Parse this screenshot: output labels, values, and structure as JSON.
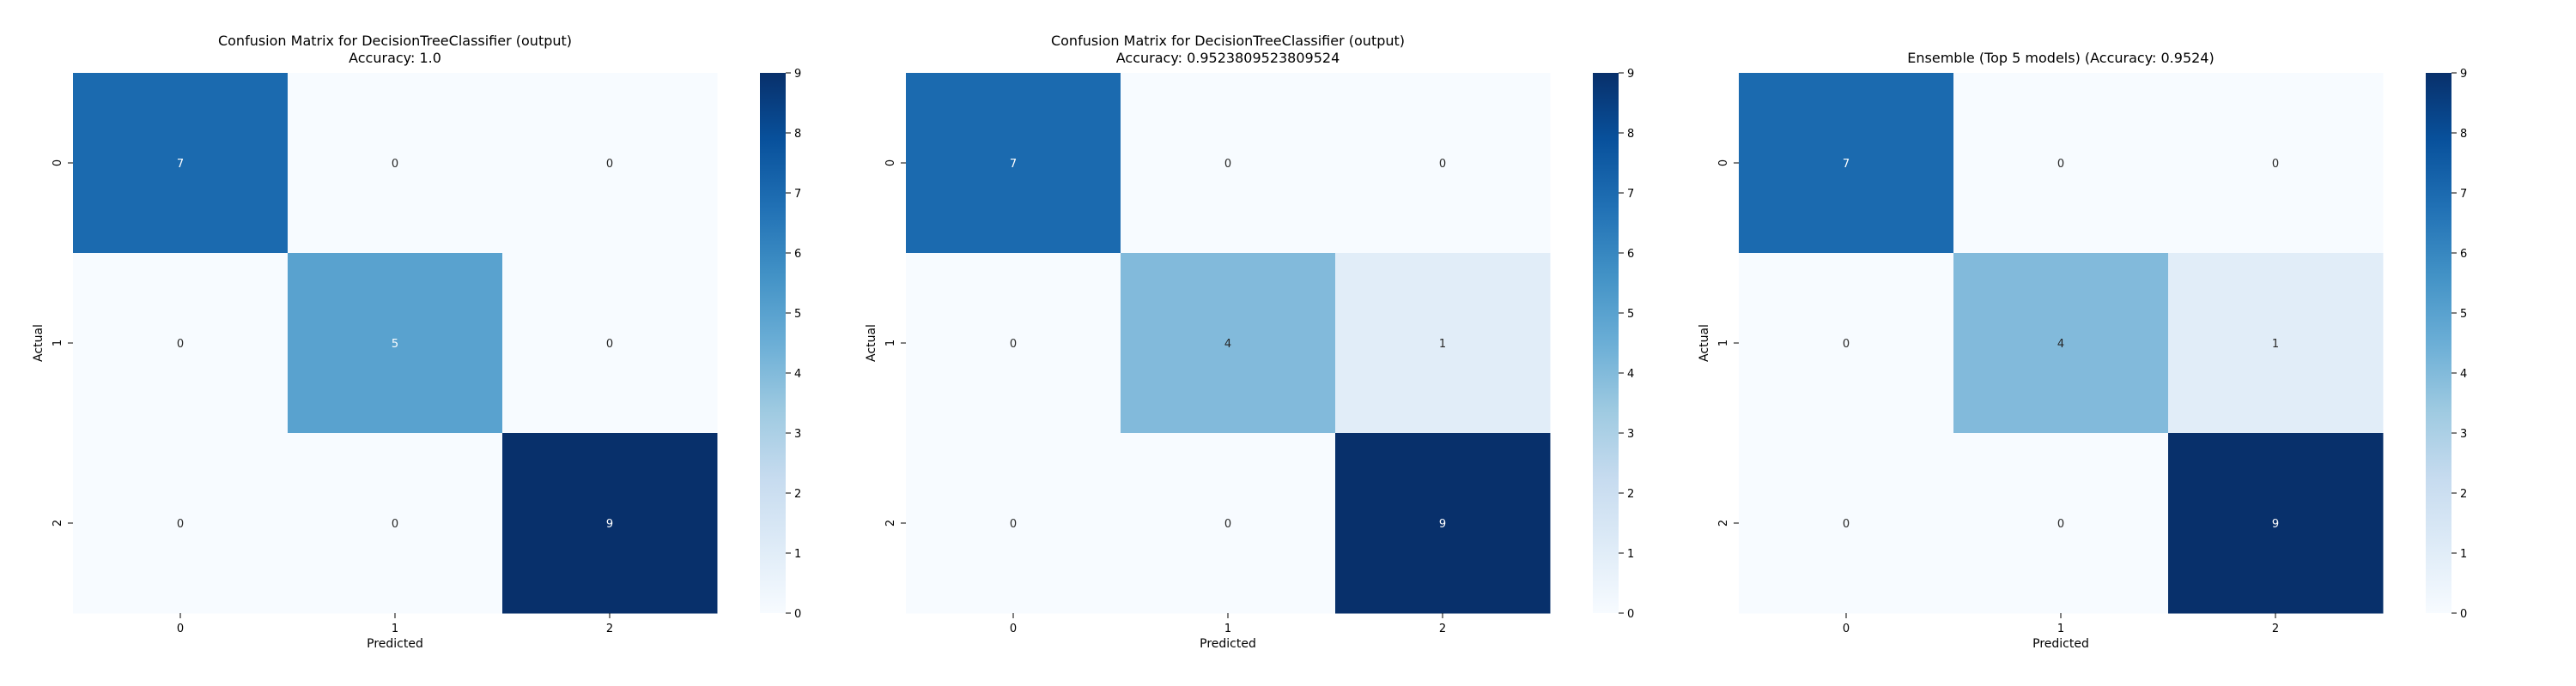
{
  "chart_data": [
    {
      "type": "heatmap",
      "title_lines": [
        "Confusion Matrix for DecisionTreeClassifier (output)",
        "Accuracy: 1.0"
      ],
      "xlabel": "Predicted",
      "ylabel": "Actual",
      "x_categories": [
        "0",
        "1",
        "2"
      ],
      "y_categories": [
        "0",
        "1",
        "2"
      ],
      "matrix": [
        [
          7,
          0,
          0
        ],
        [
          0,
          5,
          0
        ],
        [
          0,
          0,
          9
        ]
      ],
      "colormap": "Blues",
      "colorbar": {
        "min": 0,
        "max": 9,
        "ticks": [
          "0",
          "1",
          "2",
          "3",
          "4",
          "5",
          "6",
          "7",
          "8",
          "9"
        ]
      }
    },
    {
      "type": "heatmap",
      "title_lines": [
        "Confusion Matrix for DecisionTreeClassifier (output)",
        "Accuracy: 0.9523809523809524"
      ],
      "xlabel": "Predicted",
      "ylabel": "Actual",
      "x_categories": [
        "0",
        "1",
        "2"
      ],
      "y_categories": [
        "0",
        "1",
        "2"
      ],
      "matrix": [
        [
          7,
          0,
          0
        ],
        [
          0,
          4,
          1
        ],
        [
          0,
          0,
          9
        ]
      ],
      "colormap": "Blues",
      "colorbar": {
        "min": 0,
        "max": 9,
        "ticks": [
          "0",
          "1",
          "2",
          "3",
          "4",
          "5",
          "6",
          "7",
          "8",
          "9"
        ]
      }
    },
    {
      "type": "heatmap",
      "title_lines": [
        "Ensemble (Top 5 models) (Accuracy: 0.9524)"
      ],
      "xlabel": "Predicted",
      "ylabel": "Actual",
      "x_categories": [
        "0",
        "1",
        "2"
      ],
      "y_categories": [
        "0",
        "1",
        "2"
      ],
      "matrix": [
        [
          7,
          0,
          0
        ],
        [
          0,
          4,
          1
        ],
        [
          0,
          0,
          9
        ]
      ],
      "colormap": "Blues",
      "colorbar": {
        "min": 0,
        "max": 9,
        "ticks": [
          "0",
          "1",
          "2",
          "3",
          "4",
          "5",
          "6",
          "7",
          "8",
          "9"
        ]
      }
    }
  ]
}
